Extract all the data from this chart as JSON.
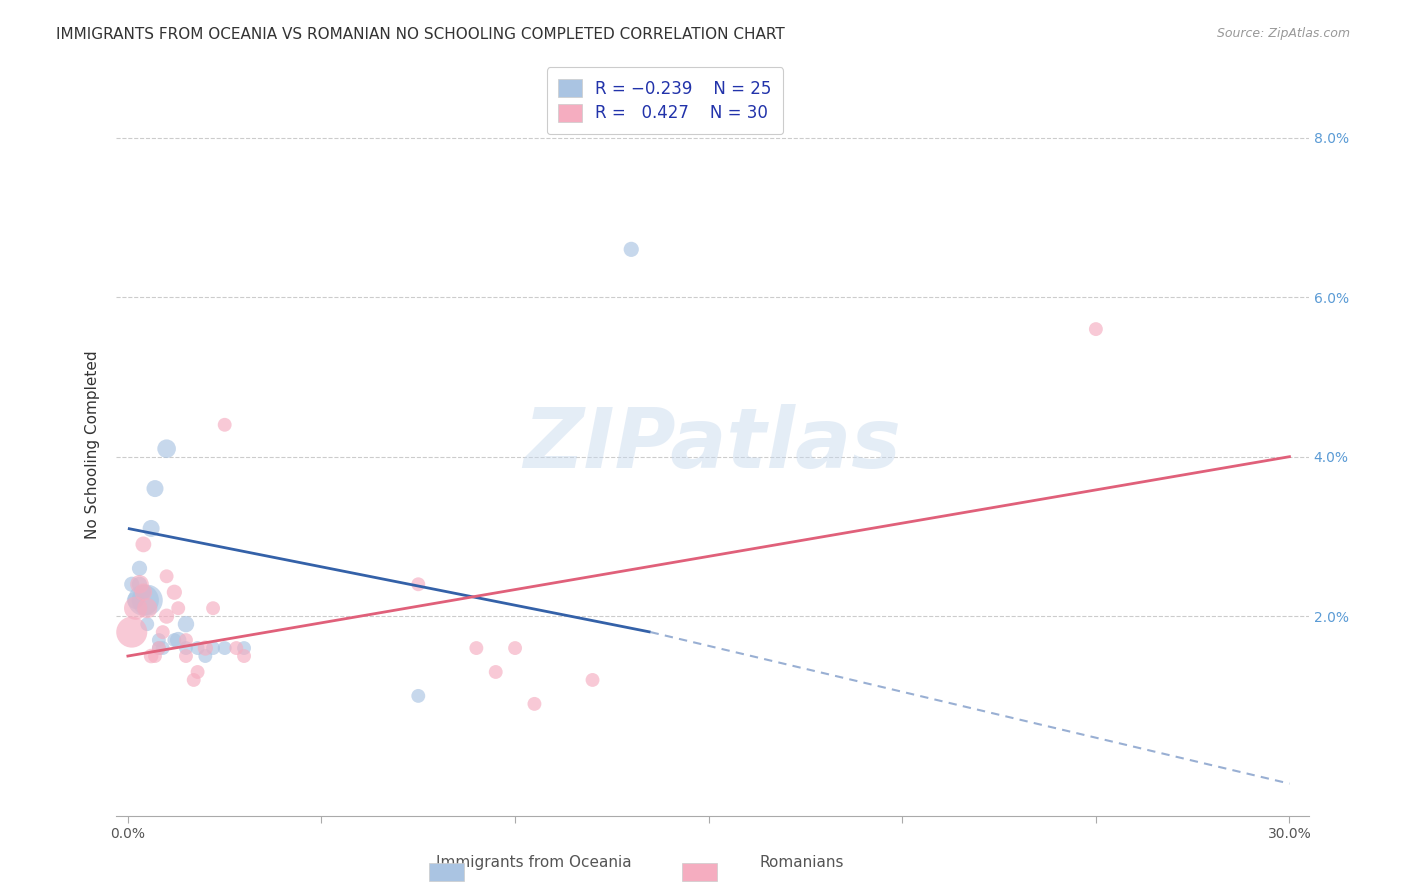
{
  "title": "IMMIGRANTS FROM OCEANIA VS ROMANIAN NO SCHOOLING COMPLETED CORRELATION CHART",
  "source": "Source: ZipAtlas.com",
  "ylabel": "No Schooling Completed",
  "xlim": [
    -0.003,
    0.305
  ],
  "ylim": [
    -0.005,
    0.088
  ],
  "xticks": [
    0.0,
    0.05,
    0.1,
    0.15,
    0.2,
    0.25,
    0.3
  ],
  "yticks": [
    0.0,
    0.02,
    0.04,
    0.06,
    0.08
  ],
  "blue_color": "#aac4e2",
  "pink_color": "#f5adc0",
  "blue_line_color": "#3461a8",
  "pink_line_color": "#e0607a",
  "watermark": "ZIPatlas",
  "blue_scatter": {
    "x": [
      0.001,
      0.002,
      0.003,
      0.003,
      0.004,
      0.004,
      0.005,
      0.005,
      0.006,
      0.007,
      0.008,
      0.008,
      0.009,
      0.01,
      0.012,
      0.013,
      0.015,
      0.015,
      0.018,
      0.02,
      0.022,
      0.025,
      0.03,
      0.075,
      0.13
    ],
    "y": [
      0.024,
      0.022,
      0.026,
      0.024,
      0.023,
      0.022,
      0.019,
      0.022,
      0.031,
      0.036,
      0.016,
      0.017,
      0.016,
      0.041,
      0.017,
      0.017,
      0.019,
      0.016,
      0.016,
      0.015,
      0.016,
      0.016,
      0.016,
      0.01,
      0.066
    ],
    "sizes": [
      120,
      160,
      120,
      120,
      120,
      500,
      100,
      500,
      150,
      150,
      100,
      100,
      100,
      180,
      100,
      140,
      140,
      100,
      100,
      100,
      100,
      100,
      100,
      100,
      120
    ]
  },
  "pink_scatter": {
    "x": [
      0.001,
      0.002,
      0.003,
      0.004,
      0.004,
      0.005,
      0.006,
      0.007,
      0.008,
      0.009,
      0.01,
      0.01,
      0.012,
      0.013,
      0.015,
      0.015,
      0.017,
      0.018,
      0.02,
      0.022,
      0.025,
      0.028,
      0.03,
      0.075,
      0.09,
      0.095,
      0.1,
      0.105,
      0.12,
      0.25
    ],
    "y": [
      0.018,
      0.021,
      0.024,
      0.029,
      0.023,
      0.021,
      0.015,
      0.015,
      0.016,
      0.018,
      0.02,
      0.025,
      0.023,
      0.021,
      0.015,
      0.017,
      0.012,
      0.013,
      0.016,
      0.021,
      0.044,
      0.016,
      0.015,
      0.024,
      0.016,
      0.013,
      0.016,
      0.009,
      0.012,
      0.056
    ],
    "sizes": [
      500,
      280,
      180,
      130,
      160,
      210,
      110,
      100,
      100,
      100,
      120,
      100,
      120,
      100,
      100,
      100,
      100,
      100,
      120,
      100,
      100,
      100,
      100,
      100,
      100,
      100,
      100,
      100,
      100,
      100
    ]
  },
  "blue_trend": {
    "x_start": 0.0,
    "x_solid_end": 0.135,
    "x_dash_end": 0.3,
    "y_start": 0.031,
    "y_solid_end": 0.018,
    "y_dash_end": -0.001
  },
  "pink_trend": {
    "x_start": 0.0,
    "x_end": 0.3,
    "y_start": 0.015,
    "y_end": 0.04
  }
}
